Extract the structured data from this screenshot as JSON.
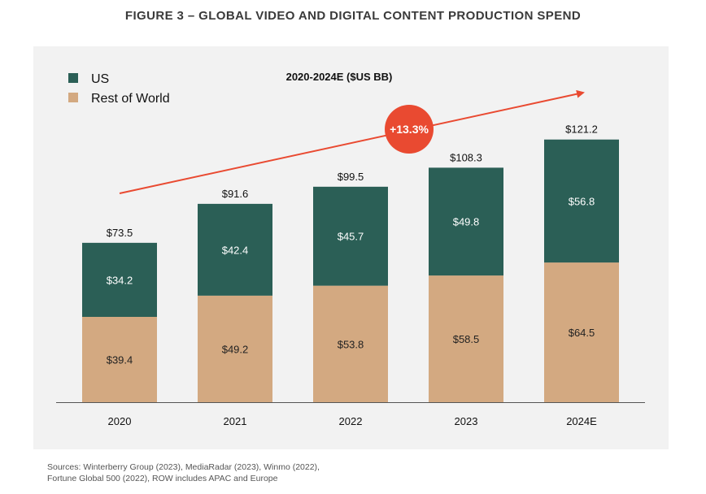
{
  "figure_title": "FIGURE 3 – GLOBAL VIDEO AND DIGITAL CONTENT PRODUCTION SPEND",
  "source_lines": [
    "Sources: Winterberry Group (2023), MediaRadar (2023), Winmo (2022),",
    "Fortune Global 500 (2022), ROW includes APAC and Europe"
  ],
  "colors": {
    "us": "#2b5f56",
    "row": "#d3a981",
    "growth": "#e94a31",
    "panel": "#f2f2f2"
  },
  "chart_data": {
    "type": "bar",
    "stacked": true,
    "title": "2020-2024E ($US BB)",
    "categories": [
      "2020",
      "2021",
      "2022",
      "2023",
      "2024E"
    ],
    "series": [
      {
        "name": "Rest of World",
        "values": [
          39.4,
          49.2,
          53.8,
          58.5,
          64.5
        ],
        "labels": [
          "$39.4",
          "$49.2",
          "$53.8",
          "$58.5",
          "$64.5"
        ],
        "color": "#d3a981"
      },
      {
        "name": "US",
        "values": [
          34.2,
          42.4,
          45.7,
          49.8,
          56.8
        ],
        "labels": [
          "$34.2",
          "$42.4",
          "$45.7",
          "$49.8",
          "$56.8"
        ],
        "color": "#2b5f56"
      }
    ],
    "totals": [
      73.5,
      91.6,
      99.5,
      108.3,
      121.2
    ],
    "total_labels": [
      "$73.5",
      "$91.6",
      "$99.5",
      "$108.3",
      "$121.2"
    ],
    "legend": {
      "placement": "top-left",
      "entries": [
        "US",
        "Rest of World"
      ]
    },
    "annotation": {
      "text": "+13.3%",
      "kind": "growth-arrow"
    },
    "ylim": [
      0,
      121.2
    ],
    "grid": false,
    "xlabel": "",
    "ylabel": ""
  }
}
